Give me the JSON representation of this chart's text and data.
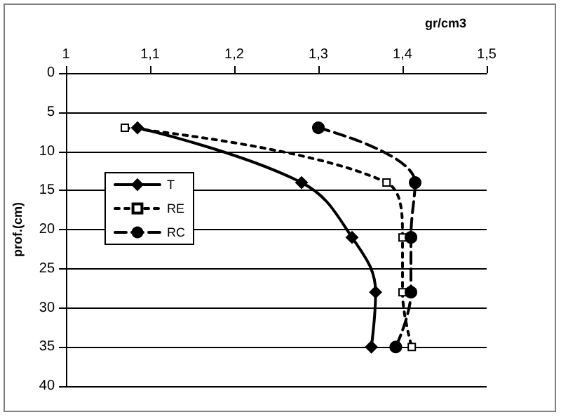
{
  "chart_data": {
    "type": "line",
    "xlabel": "gr/cm3",
    "ylabel": "prof.(cm)",
    "xlim": [
      1,
      1.5
    ],
    "xticks": [
      1,
      {
        "value": 1.1,
        "label": "1,1"
      },
      {
        "value": 1.2,
        "label": "1,2"
      },
      {
        "value": 1.3,
        "label": "1,3"
      },
      {
        "value": 1.4,
        "label": "1,4"
      },
      {
        "value": 1.5,
        "label": "1,5"
      }
    ],
    "ylim": [
      40,
      0
    ],
    "yticks": [
      0,
      5,
      10,
      15,
      20,
      25,
      30,
      35,
      40
    ],
    "grid": "y",
    "legend": "left",
    "series": [
      {
        "name": "T",
        "color": "#000000",
        "marker": "diamond",
        "line_style": "solid",
        "x": [
          1.085,
          1.28,
          1.34,
          1.368,
          1.363
        ],
        "values": [
          7,
          14,
          21,
          28,
          35
        ]
      },
      {
        "name": "RE",
        "color": "#000000",
        "marker": "square",
        "line_style": "dotted",
        "x": [
          1.07,
          1.381,
          1.4,
          1.4,
          1.411
        ],
        "values": [
          7,
          14,
          21,
          28,
          35
        ]
      },
      {
        "name": "RC",
        "color": "#000000",
        "marker": "circle",
        "line_style": "dashed",
        "x": [
          1.3,
          1.415,
          1.41,
          1.41,
          1.392
        ],
        "values": [
          7,
          14,
          21,
          28,
          35
        ]
      }
    ]
  }
}
